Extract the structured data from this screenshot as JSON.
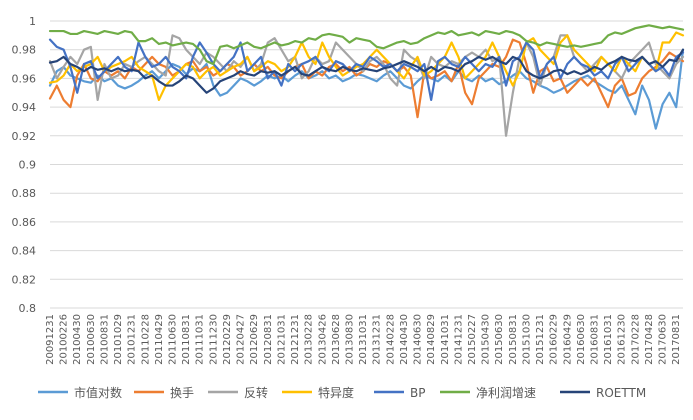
{
  "chart_data": {
    "type": "line",
    "title": "",
    "xlabel": "",
    "ylabel": "",
    "ylim": [
      0.8,
      1.0
    ],
    "y_ticks": [
      "1",
      "0.98",
      "0.96",
      "0.94",
      "0.92",
      "0.9",
      "0.88",
      "0.86",
      "0.84",
      "0.82",
      "0.8"
    ],
    "x_tick_labels": [
      "20091231",
      "20100226",
      "20100430",
      "20100630",
      "20100831",
      "20101029",
      "20101231",
      "20110228",
      "20110429",
      "20110630",
      "20110831",
      "20111031",
      "20111230",
      "20120229",
      "20120427",
      "20120629",
      "20120831",
      "20121031",
      "20121231",
      "20130228",
      "20130426",
      "20130628",
      "20130830",
      "20131031",
      "20131231",
      "20140228",
      "20140430",
      "20140630",
      "20140829",
      "20141031",
      "20141231",
      "20150227",
      "20150430",
      "20150630",
      "20150831",
      "20151030",
      "20151231",
      "20160229",
      "20160429",
      "20160630",
      "20160831",
      "20161031",
      "20161230",
      "20170228",
      "20170428",
      "20170630",
      "20170831"
    ],
    "num_points": 94,
    "grid": "horizontal",
    "legend_position": "bottom",
    "series": [
      {
        "name": "市值对数",
        "color": "#5b9bd5",
        "values": [
          0.955,
          0.965,
          0.968,
          0.962,
          0.96,
          0.958,
          0.957,
          0.962,
          0.958,
          0.96,
          0.955,
          0.953,
          0.955,
          0.958,
          0.962,
          0.965,
          0.96,
          0.965,
          0.97,
          0.968,
          0.963,
          0.967,
          0.965,
          0.97,
          0.955,
          0.948,
          0.95,
          0.955,
          0.96,
          0.958,
          0.955,
          0.958,
          0.962,
          0.96,
          0.962,
          0.958,
          0.962,
          0.965,
          0.96,
          0.962,
          0.965,
          0.96,
          0.962,
          0.958,
          0.96,
          0.963,
          0.962,
          0.96,
          0.958,
          0.962,
          0.965,
          0.96,
          0.955,
          0.953,
          0.958,
          0.962,
          0.96,
          0.958,
          0.962,
          0.958,
          0.965,
          0.96,
          0.958,
          0.962,
          0.958,
          0.96,
          0.956,
          0.958,
          0.962,
          0.965,
          0.96,
          0.958,
          0.955,
          0.953,
          0.95,
          0.952,
          0.955,
          0.958,
          0.96,
          0.962,
          0.958,
          0.955,
          0.952,
          0.95,
          0.955,
          0.945,
          0.935,
          0.955,
          0.945,
          0.925,
          0.942,
          0.95,
          0.94,
          0.98
        ]
      },
      {
        "name": "换手",
        "color": "#ed7d31",
        "values": [
          0.946,
          0.955,
          0.945,
          0.94,
          0.962,
          0.97,
          0.96,
          0.958,
          0.965,
          0.962,
          0.965,
          0.96,
          0.968,
          0.965,
          0.97,
          0.975,
          0.97,
          0.968,
          0.962,
          0.965,
          0.97,
          0.972,
          0.965,
          0.968,
          0.962,
          0.965,
          0.97,
          0.968,
          0.962,
          0.965,
          0.97,
          0.965,
          0.968,
          0.962,
          0.96,
          0.965,
          0.968,
          0.97,
          0.96,
          0.965,
          0.962,
          0.968,
          0.97,
          0.965,
          0.968,
          0.962,
          0.965,
          0.97,
          0.968,
          0.972,
          0.97,
          0.965,
          0.968,
          0.962,
          0.933,
          0.965,
          0.96,
          0.962,
          0.965,
          0.958,
          0.97,
          0.95,
          0.942,
          0.96,
          0.965,
          0.97,
          0.968,
          0.975,
          0.987,
          0.985,
          0.97,
          0.95,
          0.965,
          0.968,
          0.958,
          0.96,
          0.95,
          0.955,
          0.96,
          0.955,
          0.96,
          0.95,
          0.94,
          0.955,
          0.96,
          0.948,
          0.95,
          0.96,
          0.965,
          0.968,
          0.972,
          0.978,
          0.975,
          0.972
        ]
      },
      {
        "name": "反转",
        "color": "#a5a5a5",
        "values": [
          0.972,
          0.96,
          0.968,
          0.975,
          0.97,
          0.98,
          0.982,
          0.945,
          0.97,
          0.96,
          0.962,
          0.97,
          0.968,
          0.972,
          0.975,
          0.97,
          0.965,
          0.962,
          0.99,
          0.988,
          0.98,
          0.975,
          0.97,
          0.978,
          0.975,
          0.97,
          0.965,
          0.972,
          0.968,
          0.975,
          0.965,
          0.97,
          0.985,
          0.988,
          0.98,
          0.972,
          0.975,
          0.96,
          0.965,
          0.975,
          0.97,
          0.972,
          0.985,
          0.98,
          0.975,
          0.97,
          0.965,
          0.972,
          0.975,
          0.97,
          0.96,
          0.955,
          0.98,
          0.975,
          0.972,
          0.96,
          0.975,
          0.97,
          0.968,
          0.972,
          0.97,
          0.975,
          0.978,
          0.975,
          0.98,
          0.972,
          0.975,
          0.92,
          0.95,
          0.975,
          0.985,
          0.975,
          0.955,
          0.97,
          0.975,
          0.99,
          0.99,
          0.975,
          0.97,
          0.965,
          0.97,
          0.975,
          0.97,
          0.965,
          0.96,
          0.97,
          0.975,
          0.98,
          0.985,
          0.97,
          0.965,
          0.96,
          0.97,
          0.975
        ]
      },
      {
        "name": "特异度",
        "color": "#ffc000",
        "values": [
          0.957,
          0.958,
          0.962,
          0.97,
          0.965,
          0.968,
          0.97,
          0.975,
          0.965,
          0.968,
          0.97,
          0.972,
          0.975,
          0.968,
          0.965,
          0.962,
          0.945,
          0.955,
          0.96,
          0.965,
          0.97,
          0.968,
          0.96,
          0.965,
          0.968,
          0.962,
          0.965,
          0.968,
          0.97,
          0.975,
          0.965,
          0.968,
          0.972,
          0.97,
          0.965,
          0.968,
          0.975,
          0.985,
          0.975,
          0.97,
          0.985,
          0.975,
          0.968,
          0.962,
          0.965,
          0.968,
          0.97,
          0.975,
          0.98,
          0.975,
          0.97,
          0.965,
          0.96,
          0.968,
          0.975,
          0.962,
          0.965,
          0.97,
          0.975,
          0.985,
          0.975,
          0.96,
          0.965,
          0.97,
          0.975,
          0.985,
          0.975,
          0.965,
          0.955,
          0.965,
          0.985,
          0.988,
          0.98,
          0.975,
          0.97,
          0.985,
          0.99,
          0.98,
          0.975,
          0.97,
          0.965,
          0.975,
          0.97,
          0.965,
          0.975,
          0.97,
          0.965,
          0.975,
          0.97,
          0.965,
          0.985,
          0.985,
          0.992,
          0.99
        ]
      },
      {
        "name": "BP",
        "color": "#4472c4",
        "values": [
          0.987,
          0.982,
          0.98,
          0.968,
          0.95,
          0.97,
          0.972,
          0.96,
          0.965,
          0.97,
          0.975,
          0.968,
          0.965,
          0.985,
          0.975,
          0.968,
          0.97,
          0.975,
          0.968,
          0.965,
          0.96,
          0.975,
          0.985,
          0.978,
          0.97,
          0.965,
          0.97,
          0.975,
          0.985,
          0.965,
          0.97,
          0.975,
          0.96,
          0.965,
          0.955,
          0.97,
          0.965,
          0.97,
          0.972,
          0.975,
          0.968,
          0.965,
          0.972,
          0.97,
          0.965,
          0.97,
          0.968,
          0.975,
          0.972,
          0.968,
          0.97,
          0.965,
          0.97,
          0.968,
          0.965,
          0.97,
          0.945,
          0.972,
          0.975,
          0.97,
          0.968,
          0.975,
          0.97,
          0.965,
          0.97,
          0.968,
          0.975,
          0.955,
          0.972,
          0.975,
          0.985,
          0.98,
          0.96,
          0.97,
          0.975,
          0.96,
          0.97,
          0.975,
          0.97,
          0.968,
          0.962,
          0.965,
          0.96,
          0.97,
          0.975,
          0.965,
          0.97,
          0.975,
          0.97,
          0.965,
          0.968,
          0.962,
          0.975,
          0.978
        ]
      },
      {
        "name": "净利润增速",
        "color": "#70ad47",
        "values": [
          0.993,
          0.993,
          0.993,
          0.991,
          0.991,
          0.993,
          0.992,
          0.991,
          0.993,
          0.992,
          0.991,
          0.993,
          0.992,
          0.986,
          0.986,
          0.988,
          0.984,
          0.985,
          0.983,
          0.984,
          0.985,
          0.984,
          0.98,
          0.972,
          0.97,
          0.982,
          0.983,
          0.981,
          0.983,
          0.985,
          0.982,
          0.981,
          0.983,
          0.985,
          0.983,
          0.984,
          0.986,
          0.985,
          0.988,
          0.987,
          0.99,
          0.991,
          0.99,
          0.989,
          0.985,
          0.988,
          0.987,
          0.986,
          0.982,
          0.981,
          0.983,
          0.985,
          0.986,
          0.984,
          0.985,
          0.988,
          0.99,
          0.992,
          0.991,
          0.993,
          0.99,
          0.991,
          0.992,
          0.99,
          0.993,
          0.992,
          0.991,
          0.993,
          0.992,
          0.99,
          0.986,
          0.985,
          0.983,
          0.985,
          0.984,
          0.983,
          0.982,
          0.983,
          0.982,
          0.983,
          0.984,
          0.985,
          0.99,
          0.992,
          0.991,
          0.993,
          0.995,
          0.996,
          0.997,
          0.996,
          0.995,
          0.996,
          0.995,
          0.994
        ]
      },
      {
        "name": "ROETTM",
        "color": "#264478",
        "values": [
          0.971,
          0.972,
          0.975,
          0.97,
          0.968,
          0.965,
          0.968,
          0.966,
          0.967,
          0.965,
          0.967,
          0.965,
          0.966,
          0.965,
          0.96,
          0.962,
          0.958,
          0.955,
          0.955,
          0.958,
          0.962,
          0.96,
          0.955,
          0.95,
          0.953,
          0.958,
          0.96,
          0.962,
          0.965,
          0.963,
          0.962,
          0.965,
          0.964,
          0.965,
          0.962,
          0.965,
          0.968,
          0.963,
          0.962,
          0.965,
          0.968,
          0.966,
          0.965,
          0.968,
          0.966,
          0.965,
          0.967,
          0.966,
          0.965,
          0.967,
          0.968,
          0.97,
          0.972,
          0.97,
          0.968,
          0.965,
          0.968,
          0.965,
          0.968,
          0.967,
          0.965,
          0.97,
          0.972,
          0.975,
          0.973,
          0.975,
          0.972,
          0.97,
          0.975,
          0.973,
          0.965,
          0.962,
          0.96,
          0.962,
          0.965,
          0.966,
          0.963,
          0.965,
          0.963,
          0.965,
          0.968,
          0.966,
          0.97,
          0.972,
          0.975,
          0.973,
          0.972,
          0.975,
          0.97,
          0.972,
          0.968,
          0.973,
          0.972,
          0.98
        ]
      }
    ]
  }
}
